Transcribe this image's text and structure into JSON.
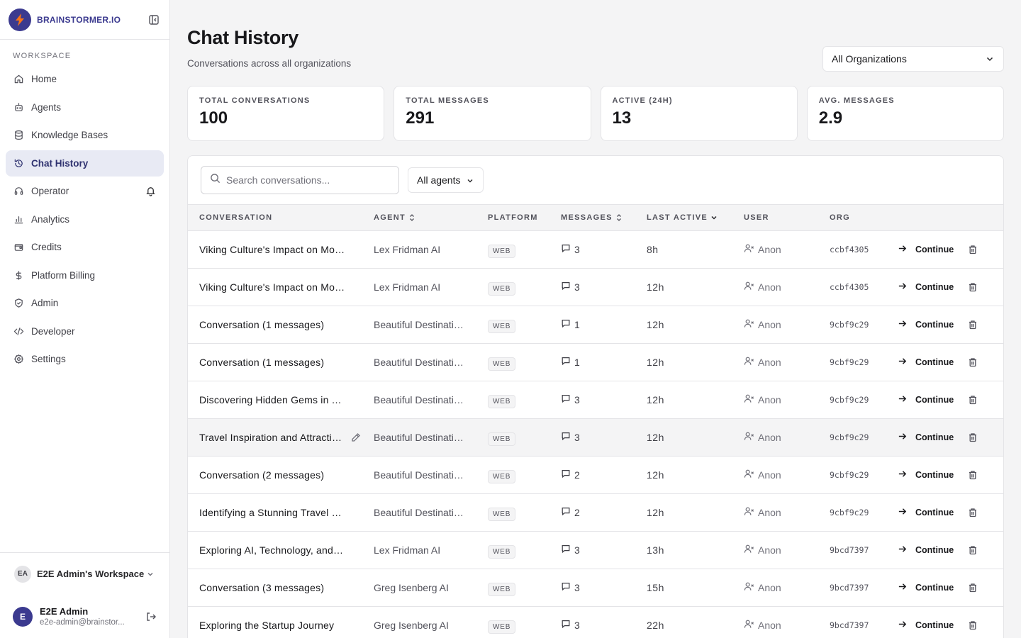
{
  "sidebar": {
    "brand": "BRAINSTORMER.IO",
    "section_label": "WORKSPACE",
    "items": [
      {
        "label": "Home",
        "icon": "home-icon"
      },
      {
        "label": "Agents",
        "icon": "agents-icon"
      },
      {
        "label": "Knowledge Bases",
        "icon": "database-icon"
      },
      {
        "label": "Chat History",
        "icon": "history-icon",
        "active": true
      },
      {
        "label": "Operator",
        "icon": "headset-icon"
      },
      {
        "label": "Analytics",
        "icon": "bar-chart-icon"
      },
      {
        "label": "Credits",
        "icon": "wallet-icon"
      },
      {
        "label": "Platform Billing",
        "icon": "dollar-icon"
      },
      {
        "label": "Admin",
        "icon": "shield-icon"
      },
      {
        "label": "Developer",
        "icon": "code-icon"
      },
      {
        "label": "Settings",
        "icon": "gear-icon"
      }
    ],
    "workspace": {
      "initials": "EA",
      "name": "E2E Admin's Workspace"
    },
    "user": {
      "initial": "E",
      "name": "E2E Admin",
      "email": "e2e-admin@brainstor..."
    }
  },
  "header": {
    "title": "Chat History",
    "subtitle": "Conversations across all organizations",
    "org_select": "All Organizations"
  },
  "stats": [
    {
      "label": "TOTAL CONVERSATIONS",
      "value": "100"
    },
    {
      "label": "TOTAL MESSAGES",
      "value": "291"
    },
    {
      "label": "ACTIVE (24H)",
      "value": "13"
    },
    {
      "label": "AVG. MESSAGES",
      "value": "2.9"
    }
  ],
  "toolbar": {
    "search_placeholder": "Search conversations...",
    "agent_filter": "All agents"
  },
  "table": {
    "columns": {
      "conversation": "CONVERSATION",
      "agent": "AGENT",
      "platform": "PLATFORM",
      "messages": "MESSAGES",
      "last_active": "LAST ACTIVE",
      "user": "USER",
      "org": "ORG"
    },
    "continue_label": "Continue",
    "rows": [
      {
        "conversation": "Viking Culture's Impact on Modern Society",
        "agent": "Lex Fridman AI",
        "platform": "WEB",
        "messages": "3",
        "last_active": "8h",
        "user": "Anon",
        "org": "ccbf4305"
      },
      {
        "conversation": "Viking Culture's Impact on Modern Society",
        "agent": "Lex Fridman AI",
        "platform": "WEB",
        "messages": "3",
        "last_active": "12h",
        "user": "Anon",
        "org": "ccbf4305"
      },
      {
        "conversation": "Conversation (1 messages)",
        "agent": "Beautiful Destinations AI",
        "platform": "WEB",
        "messages": "1",
        "last_active": "12h",
        "user": "Anon",
        "org": "9cbf9c29"
      },
      {
        "conversation": "Conversation (1 messages)",
        "agent": "Beautiful Destinations AI",
        "platform": "WEB",
        "messages": "1",
        "last_active": "12h",
        "user": "Anon",
        "org": "9cbf9c29"
      },
      {
        "conversation": "Discovering Hidden Gems in Travel",
        "agent": "Beautiful Destinations AI",
        "platform": "WEB",
        "messages": "3",
        "last_active": "12h",
        "user": "Anon",
        "org": "9cbf9c29"
      },
      {
        "conversation": "Travel Inspiration and Attractions",
        "agent": "Beautiful Destinations AI",
        "platform": "WEB",
        "messages": "3",
        "last_active": "12h",
        "user": "Anon",
        "org": "9cbf9c29",
        "hover": true
      },
      {
        "conversation": "Conversation (2 messages)",
        "agent": "Beautiful Destinations AI",
        "platform": "WEB",
        "messages": "2",
        "last_active": "12h",
        "user": "Anon",
        "org": "9cbf9c29"
      },
      {
        "conversation": "Identifying a Stunning Travel Destination",
        "agent": "Beautiful Destinations AI",
        "platform": "WEB",
        "messages": "2",
        "last_active": "12h",
        "user": "Anon",
        "org": "9cbf9c29"
      },
      {
        "conversation": "Exploring AI, Technology, and the Future",
        "agent": "Lex Fridman AI",
        "platform": "WEB",
        "messages": "3",
        "last_active": "13h",
        "user": "Anon",
        "org": "9bcd7397"
      },
      {
        "conversation": "Conversation (3 messages)",
        "agent": "Greg Isenberg AI",
        "platform": "WEB",
        "messages": "3",
        "last_active": "15h",
        "user": "Anon",
        "org": "9bcd7397"
      },
      {
        "conversation": "Exploring the Startup Journey",
        "agent": "Greg Isenberg AI",
        "platform": "WEB",
        "messages": "3",
        "last_active": "22h",
        "user": "Anon",
        "org": "9bcd7397"
      }
    ]
  }
}
